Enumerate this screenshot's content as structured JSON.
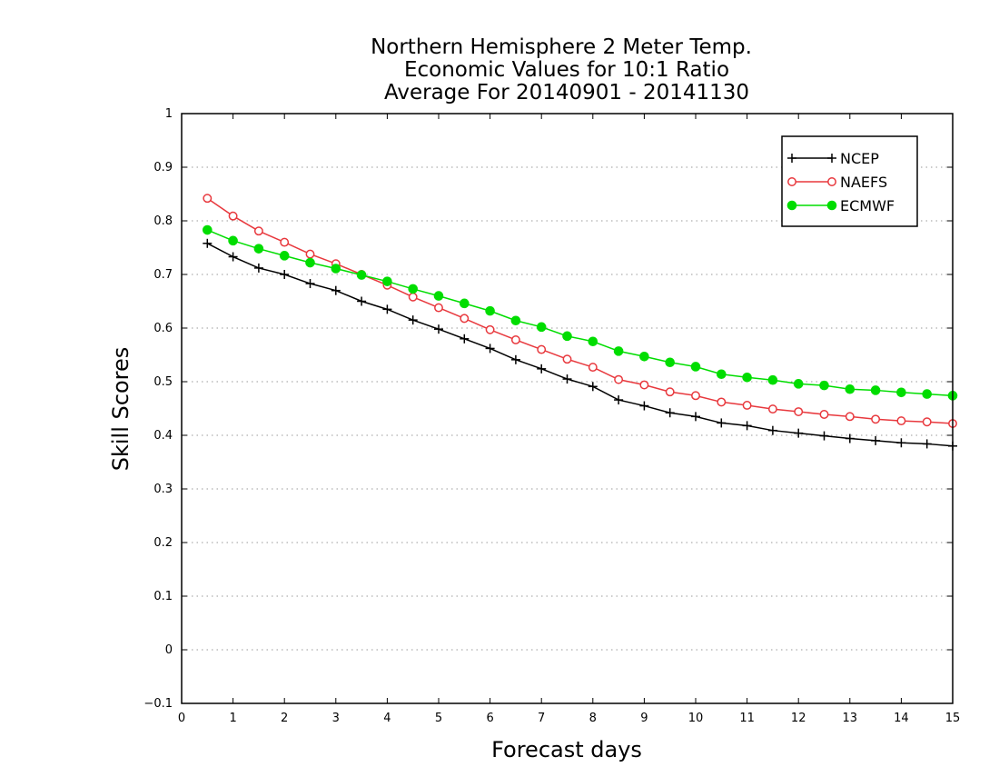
{
  "chart_data": {
    "type": "line",
    "title": [
      "Northern Hemisphere 2 Meter Temp.",
      "Economic Values for 10:1 Ratio",
      "Average For 20140901 - 20141130"
    ],
    "xlabel": "Forecast days",
    "ylabel": "Skill Scores",
    "xlim": [
      0,
      15
    ],
    "ylim": [
      -0.1,
      1
    ],
    "xticks": [
      "0",
      "1",
      "2",
      "3",
      "4",
      "5",
      "6",
      "7",
      "8",
      "9",
      "10",
      "11",
      "12",
      "13",
      "14",
      "15"
    ],
    "yticks": [
      "−0.1",
      "0",
      "0.1",
      "0.2",
      "0.3",
      "0.4",
      "0.5",
      "0.6",
      "0.7",
      "0.8",
      "0.9",
      "1"
    ],
    "grid": true,
    "legend_position": "top-right",
    "x": [
      0.5,
      1,
      1.5,
      2,
      2.5,
      3,
      3.5,
      4,
      4.5,
      5,
      5.5,
      6,
      6.5,
      7,
      7.5,
      8,
      8.5,
      9,
      9.5,
      10,
      10.5,
      11,
      11.5,
      12,
      12.5,
      13,
      13.5,
      14,
      14.5,
      15
    ],
    "series": [
      {
        "name": "NCEP",
        "color": "#000000",
        "marker": "plus",
        "values": [
          0.758,
          0.733,
          0.712,
          0.7,
          0.683,
          0.67,
          0.65,
          0.635,
          0.615,
          0.598,
          0.58,
          0.562,
          0.541,
          0.524,
          0.505,
          0.491,
          0.466,
          0.455,
          0.442,
          0.435,
          0.423,
          0.418,
          0.409,
          0.404,
          0.399,
          0.394,
          0.39,
          0.386,
          0.384,
          0.38
        ]
      },
      {
        "name": "NAEFS",
        "color": "#e8383d",
        "marker": "open-circle",
        "values": [
          0.842,
          0.809,
          0.781,
          0.76,
          0.738,
          0.72,
          0.7,
          0.68,
          0.658,
          0.638,
          0.618,
          0.597,
          0.578,
          0.56,
          0.542,
          0.527,
          0.504,
          0.494,
          0.481,
          0.474,
          0.462,
          0.456,
          0.449,
          0.444,
          0.439,
          0.435,
          0.43,
          0.427,
          0.425,
          0.422
        ]
      },
      {
        "name": "ECMWF",
        "color": "#00dd00",
        "marker": "filled-circle",
        "values": [
          0.783,
          0.763,
          0.748,
          0.735,
          0.722,
          0.711,
          0.699,
          0.687,
          0.673,
          0.66,
          0.646,
          0.632,
          0.614,
          0.602,
          0.585,
          0.575,
          0.557,
          0.547,
          0.536,
          0.528,
          0.514,
          0.508,
          0.503,
          0.496,
          0.493,
          0.486,
          0.484,
          0.48,
          0.477,
          0.474
        ]
      }
    ]
  }
}
